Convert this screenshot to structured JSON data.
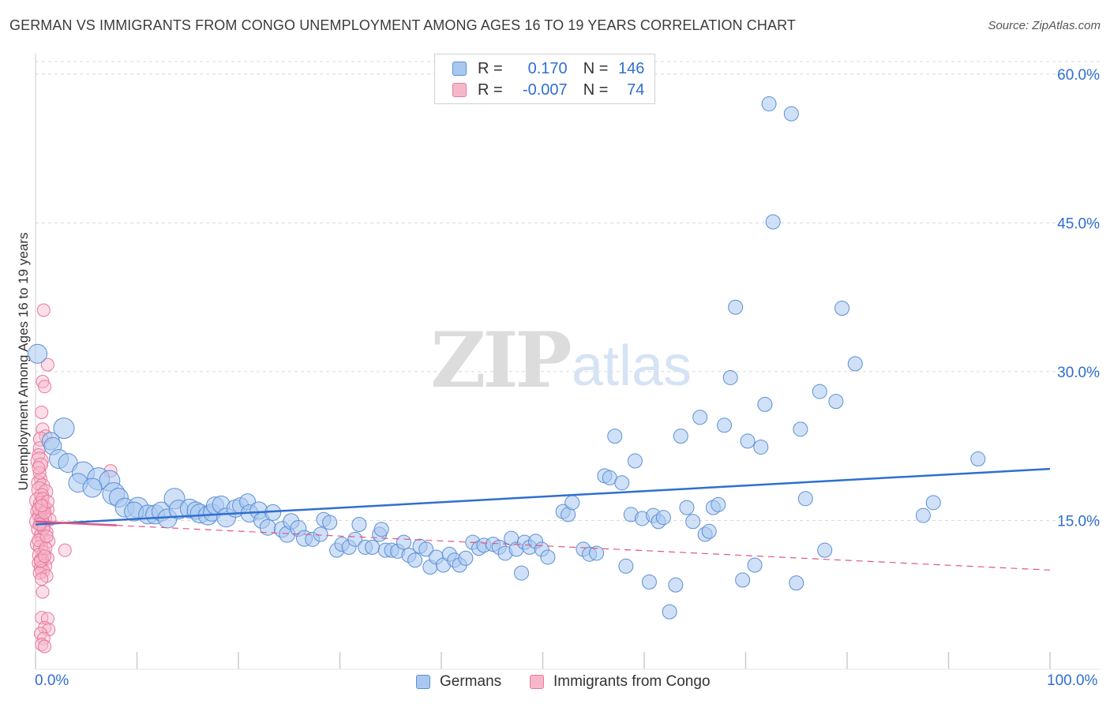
{
  "title": "GERMAN VS IMMIGRANTS FROM CONGO UNEMPLOYMENT AMONG AGES 16 TO 19 YEARS CORRELATION CHART",
  "source": "Source: ZipAtlas.com",
  "watermark": {
    "zip": "ZIP",
    "atlas": "atlas"
  },
  "legend": {
    "rows": [
      {
        "r_label": "R =",
        "r_value": "0.170",
        "n_label": "N =",
        "n_value": "146"
      },
      {
        "r_label": "R =",
        "r_value": "-0.007",
        "n_label": "N =",
        "n_value": "74"
      }
    ]
  },
  "colors": {
    "blue_fill": "#a9c8f0",
    "blue_stroke": "#5b8fd6",
    "blue_line": "#2f6fd0",
    "pink_fill": "#f7b7cb",
    "pink_stroke": "#e8789b",
    "pink_line": "#e05585",
    "axis_text": "#2f6fd0",
    "grid": "#d8d8d8"
  },
  "chart_data": {
    "type": "scatter",
    "title": "GERMAN VS IMMIGRANTS FROM CONGO UNEMPLOYMENT AMONG AGES 16 TO 19 YEARS CORRELATION CHART",
    "xlabel": "",
    "ylabel": "Unemployment Among Ages 16 to 19 years",
    "xlim": [
      0,
      100
    ],
    "ylim": [
      0,
      61.5
    ],
    "x_tick_labels": [
      "0.0%",
      "100.0%"
    ],
    "y_ticks": [
      15,
      30,
      45,
      60
    ],
    "y_tick_labels": [
      "15.0%",
      "30.0%",
      "45.0%",
      "60.0%"
    ],
    "grid": true,
    "legend_position": "bottom",
    "series": [
      {
        "name": "Germans",
        "color": "#a9c8f0",
        "trend": {
          "x": [
            0,
            100
          ],
          "y": [
            14.6,
            20.2
          ],
          "style": "solid"
        },
        "points": [
          [
            0.2,
            31.8,
            12
          ],
          [
            2.8,
            24.3,
            13
          ],
          [
            1.5,
            23.0,
            11
          ],
          [
            1.7,
            22.5,
            11
          ],
          [
            2.3,
            21.2,
            12
          ],
          [
            3.2,
            20.8,
            12
          ],
          [
            4.7,
            19.8,
            14
          ],
          [
            4.2,
            18.8,
            12
          ],
          [
            6.2,
            19.2,
            14
          ],
          [
            7.3,
            19.0,
            13
          ],
          [
            5.6,
            18.3,
            12
          ],
          [
            7.7,
            17.7,
            14
          ],
          [
            8.2,
            17.3,
            12
          ],
          [
            8.8,
            16.3,
            12
          ],
          [
            10.1,
            16.3,
            13
          ],
          [
            9.7,
            15.9,
            12
          ],
          [
            11.1,
            15.6,
            12
          ],
          [
            11.8,
            15.6,
            12
          ],
          [
            12.4,
            15.9,
            12
          ],
          [
            13.0,
            15.2,
            12
          ],
          [
            13.7,
            17.2,
            13
          ],
          [
            14.1,
            16.1,
            12
          ],
          [
            15.2,
            16.2,
            12
          ],
          [
            15.8,
            16.0,
            11
          ],
          [
            16.2,
            15.7,
            12
          ],
          [
            17.0,
            15.5,
            12
          ],
          [
            17.4,
            15.8,
            11
          ],
          [
            17.7,
            16.5,
            11
          ],
          [
            18.3,
            16.6,
            11
          ],
          [
            18.8,
            15.3,
            12
          ],
          [
            19.7,
            16.2,
            11
          ],
          [
            20.2,
            16.5,
            10
          ],
          [
            20.9,
            16.9,
            10
          ],
          [
            21.1,
            15.7,
            11
          ],
          [
            22.0,
            16.0,
            11
          ],
          [
            22.3,
            15.0,
            10
          ],
          [
            22.9,
            14.3,
            10
          ],
          [
            23.4,
            15.8,
            10
          ],
          [
            24.3,
            14.1,
            10
          ],
          [
            24.8,
            13.6,
            10
          ],
          [
            25.2,
            14.9,
            10
          ],
          [
            25.9,
            14.2,
            10
          ],
          [
            26.5,
            13.2,
            10
          ],
          [
            27.3,
            13.1,
            9
          ],
          [
            28.1,
            13.6,
            9
          ],
          [
            28.4,
            15.1,
            9
          ],
          [
            29.0,
            14.8,
            9
          ],
          [
            29.7,
            12.0,
            9
          ],
          [
            30.2,
            12.6,
            9
          ],
          [
            30.9,
            12.3,
            9
          ],
          [
            31.5,
            13.1,
            9
          ],
          [
            31.9,
            14.6,
            9
          ],
          [
            32.5,
            12.3,
            9
          ],
          [
            33.2,
            12.3,
            9
          ],
          [
            33.9,
            13.6,
            9
          ],
          [
            34.1,
            14.1,
            9
          ],
          [
            34.5,
            12.0,
            9
          ],
          [
            35.1,
            12.0,
            9
          ],
          [
            35.7,
            11.9,
            9
          ],
          [
            36.3,
            12.8,
            9
          ],
          [
            36.8,
            11.5,
            9
          ],
          [
            37.4,
            11.0,
            9
          ],
          [
            37.9,
            12.4,
            9
          ],
          [
            38.5,
            12.1,
            9
          ],
          [
            38.9,
            10.3,
            9
          ],
          [
            39.5,
            11.3,
            9
          ],
          [
            40.2,
            10.5,
            9
          ],
          [
            40.8,
            11.6,
            9
          ],
          [
            41.3,
            11.0,
            9
          ],
          [
            41.8,
            10.5,
            9
          ],
          [
            42.4,
            11.2,
            9
          ],
          [
            43.1,
            12.8,
            9
          ],
          [
            43.7,
            12.2,
            9
          ],
          [
            44.2,
            12.5,
            9
          ],
          [
            45.1,
            12.6,
            9
          ],
          [
            45.7,
            12.3,
            9
          ],
          [
            46.3,
            11.7,
            9
          ],
          [
            46.9,
            13.2,
            9
          ],
          [
            47.4,
            12.1,
            9
          ],
          [
            48.2,
            12.8,
            9
          ],
          [
            48.7,
            12.3,
            9
          ],
          [
            49.3,
            12.9,
            9
          ],
          [
            49.9,
            12.1,
            9
          ],
          [
            50.5,
            11.3,
            9
          ],
          [
            47.9,
            9.7,
            9
          ],
          [
            52.0,
            15.9,
            9
          ],
          [
            52.5,
            15.6,
            9
          ],
          [
            52.9,
            16.8,
            9
          ],
          [
            54.0,
            12.1,
            9
          ],
          [
            54.6,
            11.6,
            9
          ],
          [
            55.3,
            11.7,
            9
          ],
          [
            56.1,
            19.5,
            9
          ],
          [
            56.6,
            19.3,
            9
          ],
          [
            57.1,
            23.5,
            9
          ],
          [
            57.8,
            18.8,
            9
          ],
          [
            58.2,
            10.4,
            9
          ],
          [
            58.7,
            15.6,
            9
          ],
          [
            59.1,
            21.0,
            9
          ],
          [
            59.8,
            15.2,
            9
          ],
          [
            60.5,
            8.8,
            9
          ],
          [
            60.9,
            15.5,
            9
          ],
          [
            61.4,
            14.9,
            9
          ],
          [
            61.9,
            15.3,
            9
          ],
          [
            62.5,
            5.8,
            9
          ],
          [
            63.1,
            8.5,
            9
          ],
          [
            63.6,
            23.5,
            9
          ],
          [
            64.2,
            16.3,
            9
          ],
          [
            64.8,
            14.9,
            9
          ],
          [
            65.5,
            25.4,
            9
          ],
          [
            66.0,
            13.6,
            9
          ],
          [
            66.4,
            13.9,
            9
          ],
          [
            66.8,
            16.3,
            9
          ],
          [
            67.3,
            16.6,
            9
          ],
          [
            67.9,
            24.6,
            9
          ],
          [
            68.5,
            29.4,
            9
          ],
          [
            69.0,
            36.5,
            9
          ],
          [
            69.7,
            9.0,
            9
          ],
          [
            70.2,
            23.0,
            9
          ],
          [
            70.9,
            10.5,
            9
          ],
          [
            71.5,
            22.4,
            9
          ],
          [
            71.9,
            26.7,
            9
          ],
          [
            72.3,
            57.0,
            9
          ],
          [
            72.7,
            45.1,
            9
          ],
          [
            74.5,
            56.0,
            9
          ],
          [
            75.0,
            8.7,
            9
          ],
          [
            75.4,
            24.2,
            9
          ],
          [
            75.9,
            17.2,
            9
          ],
          [
            77.3,
            28.0,
            9
          ],
          [
            77.8,
            12.0,
            9
          ],
          [
            78.9,
            27.0,
            9
          ],
          [
            79.5,
            36.4,
            9
          ],
          [
            80.8,
            30.8,
            9
          ],
          [
            87.5,
            15.5,
            9
          ],
          [
            88.5,
            16.8,
            9
          ],
          [
            92.9,
            21.2,
            9
          ]
        ]
      },
      {
        "name": "Immigrants from Congo",
        "color": "#f7b7cb",
        "trend": {
          "x": [
            0,
            100
          ],
          "y": [
            14.9,
            10.0
          ],
          "style": "dashed",
          "solid_until": 8
        },
        "points": [
          [
            0.8,
            36.2,
            8
          ],
          [
            1.2,
            30.7,
            8
          ],
          [
            0.7,
            29.0,
            8
          ],
          [
            0.9,
            28.5,
            8
          ],
          [
            0.6,
            25.9,
            8
          ],
          [
            0.7,
            24.2,
            8
          ],
          [
            1.0,
            23.5,
            8
          ],
          [
            0.5,
            23.2,
            9
          ],
          [
            0.4,
            22.3,
            8
          ],
          [
            0.3,
            21.6,
            8
          ],
          [
            0.4,
            21.0,
            11
          ],
          [
            0.5,
            20.6,
            9
          ],
          [
            7.4,
            20.0,
            8
          ],
          [
            0.5,
            19.2,
            8
          ],
          [
            0.3,
            18.8,
            9
          ],
          [
            0.7,
            18.5,
            9
          ],
          [
            0.4,
            18.1,
            10
          ],
          [
            1.0,
            17.9,
            9
          ],
          [
            0.6,
            17.5,
            9
          ],
          [
            0.2,
            17.0,
            10
          ],
          [
            0.5,
            16.7,
            9
          ],
          [
            0.8,
            16.4,
            9
          ],
          [
            1.2,
            16.1,
            8
          ],
          [
            0.3,
            15.9,
            10
          ],
          [
            0.7,
            15.7,
            9
          ],
          [
            0.4,
            15.5,
            9
          ],
          [
            0.9,
            15.3,
            9
          ],
          [
            1.4,
            15.1,
            8
          ],
          [
            0.2,
            14.9,
            10
          ],
          [
            0.6,
            14.7,
            9
          ],
          [
            0.8,
            14.4,
            8
          ],
          [
            0.3,
            14.1,
            9
          ],
          [
            1.1,
            13.8,
            8
          ],
          [
            0.5,
            13.5,
            8
          ],
          [
            0.7,
            13.2,
            9
          ],
          [
            1.3,
            12.9,
            8
          ],
          [
            0.2,
            12.6,
            9
          ],
          [
            0.5,
            12.3,
            9
          ],
          [
            2.9,
            12.0,
            8
          ],
          [
            0.8,
            11.8,
            8
          ],
          [
            0.4,
            11.5,
            9
          ],
          [
            1.2,
            11.2,
            8
          ],
          [
            0.6,
            11.0,
            9
          ],
          [
            0.3,
            10.7,
            8
          ],
          [
            0.9,
            10.4,
            9
          ],
          [
            0.5,
            10.2,
            8
          ],
          [
            0.7,
            9.9,
            9
          ],
          [
            0.4,
            9.7,
            8
          ],
          [
            1.1,
            9.4,
            8
          ],
          [
            0.6,
            9.1,
            8
          ],
          [
            0.7,
            7.8,
            8
          ],
          [
            0.6,
            5.2,
            8
          ],
          [
            1.2,
            5.1,
            8
          ],
          [
            0.9,
            4.2,
            8
          ],
          [
            1.3,
            4.0,
            8
          ],
          [
            0.5,
            3.6,
            8
          ],
          [
            0.8,
            3.1,
            8
          ],
          [
            0.6,
            2.5,
            8
          ],
          [
            0.9,
            2.3,
            8
          ],
          [
            0.4,
            16.2,
            9
          ],
          [
            0.6,
            15.0,
            9
          ],
          [
            0.9,
            15.8,
            8
          ],
          [
            0.3,
            13.0,
            8
          ],
          [
            1.0,
            12.2,
            8
          ],
          [
            0.7,
            17.2,
            8
          ],
          [
            0.4,
            19.8,
            8
          ],
          [
            1.2,
            16.9,
            8
          ],
          [
            0.8,
            14.2,
            8
          ],
          [
            0.5,
            10.9,
            8
          ],
          [
            1.1,
            13.4,
            8
          ],
          [
            0.3,
            20.3,
            8
          ],
          [
            0.9,
            11.4,
            8
          ],
          [
            0.6,
            16.5,
            8
          ],
          [
            0.4,
            14.6,
            8
          ]
        ]
      }
    ]
  },
  "bottom_legend": [
    "Germans",
    "Immigrants from Congo"
  ]
}
